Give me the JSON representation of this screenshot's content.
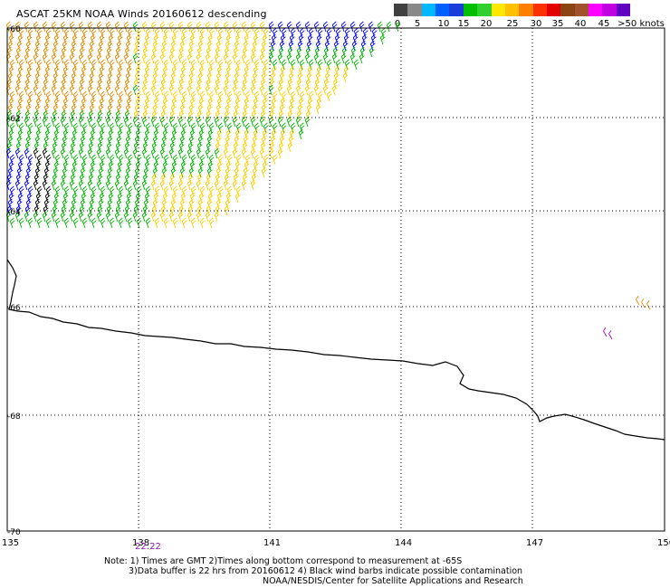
{
  "title": "ASCAT 25KM NOAA Winds 20160612 descending",
  "legend": {
    "colors": [
      "#404040",
      "#888888",
      "#00b8ff",
      "#0060ff",
      "#1a3cd8",
      "#00c000",
      "#30d030",
      "#ffe800",
      "#ffc000",
      "#ff8000",
      "#ff3000",
      "#e00000",
      "#8b4513",
      "#a0522d",
      "#ff00ff",
      "#c000e0",
      "#6000c0"
    ],
    "labels": [
      "0",
      "5",
      "10",
      "15",
      "20",
      "25",
      "30",
      "35",
      "40",
      "45",
      ">50 knots"
    ]
  },
  "axes": {
    "lon_ticks": [
      "135",
      "138",
      "141",
      "144",
      "147",
      "150"
    ],
    "lat_ticks": [
      "-60",
      "-62",
      "-64",
      "-66",
      "-68",
      "-70"
    ]
  },
  "time_label": "22:22",
  "notes": {
    "line1": "Note: 1) Times are GMT 2)Times along bottom correspond to measurement at -65S",
    "line2": "3)Data buffer is 22 hrs from 20160612 4) Black wind barbs indicate possible contamination",
    "line3": "NOAA/NESDIS/Center for Satellite Applications and Research"
  },
  "colors": {
    "orange": "#e08c00",
    "yellow": "#ffd000",
    "green": "#00b400",
    "blue": "#0000ff",
    "black": "#000000",
    "red": "#e00000",
    "magenta": "#a000c0"
  }
}
